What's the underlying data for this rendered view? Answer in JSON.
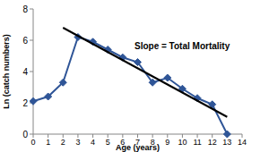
{
  "chart_data": {
    "type": "line",
    "x_label": "Age (years)",
    "y_label": "Ln (catch numbers)",
    "annotation": "Slope = Total Mortality",
    "x": [
      0,
      1,
      2,
      3,
      4,
      5,
      6,
      7,
      8,
      9,
      10,
      11,
      12,
      13
    ],
    "series": [
      {
        "type": "line",
        "color": "#2f5597",
        "marker": "diamond",
        "line_style": "solid",
        "values": [
          2.1,
          2.4,
          3.3,
          6.2,
          5.9,
          5.4,
          4.9,
          4.6,
          3.3,
          3.6,
          2.9,
          2.3,
          1.9,
          0
        ]
      },
      {
        "type": "line",
        "color": "#000000",
        "marker": "none",
        "line_style": "solid",
        "x": [
          2,
          13
        ],
        "values": [
          6.8,
          1.1
        ]
      }
    ],
    "xlim": [
      0,
      14
    ],
    "xticks": [
      0,
      1,
      2,
      3,
      4,
      5,
      6,
      7,
      8,
      9,
      10,
      11,
      12,
      13,
      14
    ],
    "ylim": [
      0,
      8
    ],
    "yticks": [
      0,
      2,
      4,
      6,
      8
    ],
    "grid": false
  }
}
